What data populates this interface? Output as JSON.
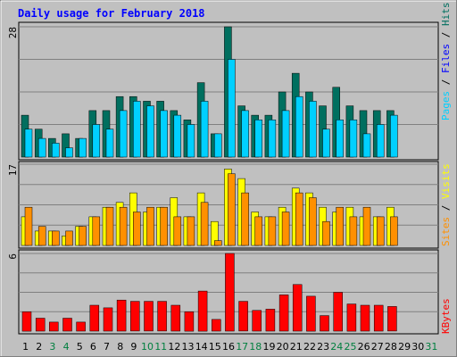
{
  "title": "Daily usage for February 2018",
  "colors": {
    "background": "#c0c0c0",
    "frame_outer": "#ffffff",
    "frame_dark": "#808080",
    "title_text": "#0000ff",
    "grid": "#808080",
    "hits": "#006f5f",
    "files": "#00d0ff",
    "visits": "#ffff00",
    "sites": "#ff9000",
    "kbytes": "#ff0000",
    "weekend_label": "#007f3f",
    "weekday_label": "#000000",
    "future_label": "#000000"
  },
  "legend": {
    "top_right": [
      {
        "text": "Pages",
        "color": "#00d0ff"
      },
      {
        "text": " / ",
        "color": "#000000"
      },
      {
        "text": "Files",
        "color": "#0000ff"
      },
      {
        "text": " / ",
        "color": "#000000"
      },
      {
        "text": "Hits",
        "color": "#006f5f"
      }
    ],
    "middle_right": [
      {
        "text": "Sites",
        "color": "#ff9000"
      },
      {
        "text": " / ",
        "color": "#000000"
      },
      {
        "text": "Visits",
        "color": "#ffff00"
      }
    ],
    "bottom_right": [
      {
        "text": "KBytes",
        "color": "#ff0000"
      }
    ]
  },
  "chart_data": [
    {
      "type": "bar",
      "panel": "top",
      "title": "",
      "ymax_label": "28",
      "ylim": [
        0,
        28
      ],
      "grid": true,
      "categories": [
        "1",
        "2",
        "3",
        "4",
        "5",
        "6",
        "7",
        "8",
        "9",
        "10",
        "11",
        "12",
        "13",
        "14",
        "15",
        "16",
        "17",
        "18",
        "19",
        "20",
        "21",
        "22",
        "23",
        "24",
        "25",
        "26",
        "27",
        "28",
        "29",
        "30",
        "31"
      ],
      "series": [
        {
          "name": "Hits",
          "color": "#006f5f",
          "values": [
            9,
            6,
            4,
            5,
            4,
            10,
            10,
            13,
            13,
            12,
            12,
            10,
            8,
            16,
            5,
            28,
            11,
            9,
            9,
            14,
            18,
            14,
            11,
            15,
            11,
            10,
            10,
            10,
            null,
            null,
            null
          ]
        },
        {
          "name": "Files",
          "color": "#00d0ff",
          "values": [
            6,
            4,
            3,
            2,
            4,
            7,
            6,
            10,
            12,
            11,
            10,
            9,
            7,
            12,
            5,
            21,
            10,
            8,
            8,
            10,
            13,
            12,
            6,
            8,
            8,
            5,
            7,
            9,
            null,
            null,
            null
          ]
        }
      ]
    },
    {
      "type": "bar",
      "panel": "middle",
      "title": "",
      "ymax_label": "17",
      "ylim": [
        0,
        17
      ],
      "grid": true,
      "categories": [
        "1",
        "2",
        "3",
        "4",
        "5",
        "6",
        "7",
        "8",
        "9",
        "10",
        "11",
        "12",
        "13",
        "14",
        "15",
        "16",
        "17",
        "18",
        "19",
        "20",
        "21",
        "22",
        "23",
        "24",
        "25",
        "26",
        "27",
        "28",
        "29",
        "30",
        "31"
      ],
      "series": [
        {
          "name": "Visits",
          "color": "#ffff00",
          "values": [
            6,
            3,
            3,
            2,
            4,
            6,
            8,
            9,
            11,
            7,
            8,
            10,
            6,
            11,
            5,
            16,
            14,
            7,
            6,
            8,
            12,
            11,
            8,
            7,
            8,
            6,
            6,
            8,
            null,
            null,
            null
          ]
        },
        {
          "name": "Sites",
          "color": "#ff9000",
          "values": [
            8,
            4,
            3,
            3,
            4,
            6,
            8,
            8,
            7,
            8,
            8,
            6,
            6,
            9,
            1,
            15,
            11,
            6,
            6,
            7,
            11,
            10,
            5,
            8,
            6,
            8,
            6,
            6,
            null,
            null,
            null
          ]
        }
      ]
    },
    {
      "type": "bar",
      "panel": "bottom",
      "title": "",
      "ymax_label": "6",
      "ylim": [
        0,
        6
      ],
      "grid": true,
      "categories": [
        "1",
        "2",
        "3",
        "4",
        "5",
        "6",
        "7",
        "8",
        "9",
        "10",
        "11",
        "12",
        "13",
        "14",
        "15",
        "16",
        "17",
        "18",
        "19",
        "20",
        "21",
        "22",
        "23",
        "24",
        "25",
        "26",
        "27",
        "28",
        "29",
        "30",
        "31"
      ],
      "series": [
        {
          "name": "KBytes",
          "color": "#ff0000",
          "values": [
            1.5,
            1.0,
            0.7,
            1.0,
            0.7,
            2.0,
            1.8,
            2.4,
            2.3,
            2.3,
            2.3,
            2.0,
            1.5,
            3.1,
            0.9,
            6.0,
            2.3,
            1.6,
            1.7,
            2.8,
            3.6,
            2.7,
            1.2,
            3.0,
            2.1,
            2.0,
            2.0,
            1.9,
            null,
            null,
            null
          ]
        }
      ]
    }
  ],
  "x_labels": [
    "1",
    "2",
    "3",
    "4",
    "5",
    "6",
    "7",
    "8",
    "9",
    "10",
    "11",
    "12",
    "13",
    "14",
    "15",
    "16",
    "17",
    "18",
    "19",
    "20",
    "21",
    "22",
    "23",
    "24",
    "25",
    "26",
    "27",
    "28",
    "29",
    "30",
    "31"
  ],
  "weekend_days": [
    "3",
    "4",
    "10",
    "11",
    "17",
    "18",
    "24",
    "25",
    "31"
  ]
}
